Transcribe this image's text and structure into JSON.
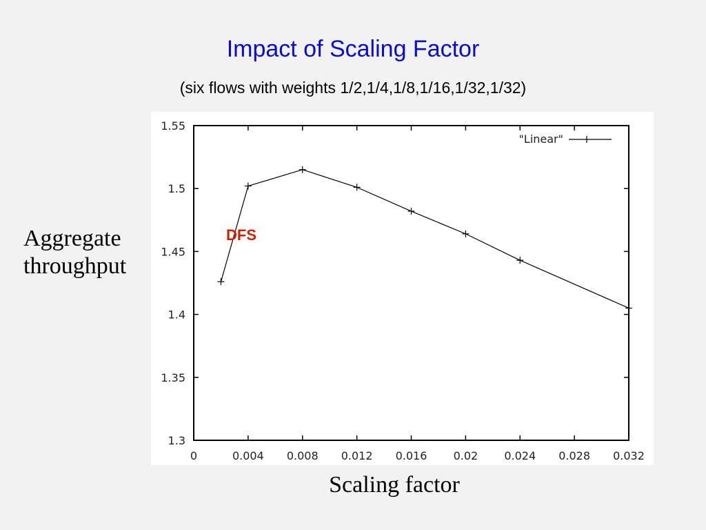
{
  "slide": {
    "title": "Impact of Scaling Factor",
    "subtitle": "(six flows with weights 1/2,1/4,1/8,1/16,1/32,1/32)",
    "ylabel_line1": "Aggregate",
    "ylabel_line2": "throughput",
    "xlabel": "Scaling factor"
  },
  "chart_data": {
    "type": "line",
    "title": "",
    "xlabel": "Scaling factor",
    "ylabel": "Aggregate throughput",
    "xlim": [
      0,
      0.032
    ],
    "ylim": [
      1.3,
      1.55
    ],
    "xticks": [
      "0",
      "0.004",
      "0.008",
      "0.012",
      "0.016",
      "0.02",
      "0.024",
      "0.028",
      "0.032"
    ],
    "yticks": [
      "1.3",
      "1.35",
      "1.4",
      "1.45",
      "1.5",
      "1.55"
    ],
    "grid": false,
    "legend": {
      "position": "top-right",
      "entries": [
        "\"Linear\""
      ]
    },
    "series": [
      {
        "name": "\"Linear\"",
        "marker": "+",
        "color": "#000000",
        "x": [
          0.002,
          0.004,
          0.008,
          0.012,
          0.016,
          0.02,
          0.024,
          0.032
        ],
        "y": [
          1.426,
          1.502,
          1.515,
          1.501,
          1.482,
          1.464,
          1.443,
          1.405
        ]
      }
    ],
    "annotations": [
      {
        "text": "DFS",
        "x": 0.0035,
        "y": 1.459,
        "color": "#cc2200"
      }
    ]
  }
}
